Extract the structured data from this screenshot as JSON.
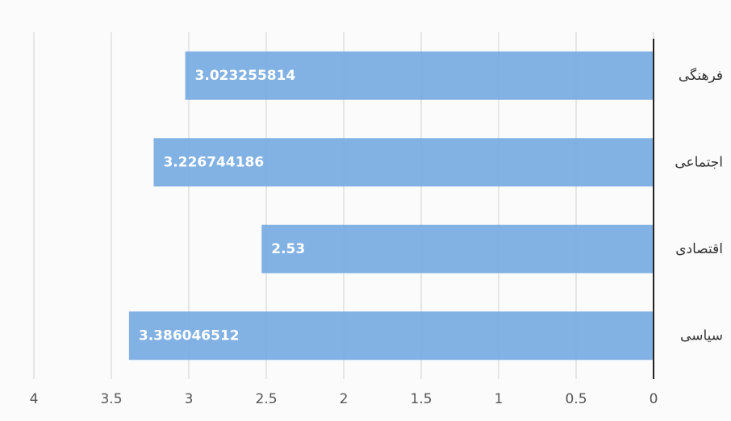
{
  "chart_data": {
    "type": "bar",
    "orientation": "horizontal",
    "x_reversed": true,
    "categories": [
      "فرهنگی",
      "اجتماعی",
      "اقتصادی",
      "سیاسی"
    ],
    "values": [
      3.023255814,
      3.226744186,
      2.53,
      3.386046512
    ],
    "color": "#74a9e0",
    "xlim": [
      0,
      4
    ],
    "xticks": [
      0,
      0.5,
      1,
      1.5,
      2,
      2.5,
      3,
      3.5,
      4
    ],
    "grid": true
  }
}
